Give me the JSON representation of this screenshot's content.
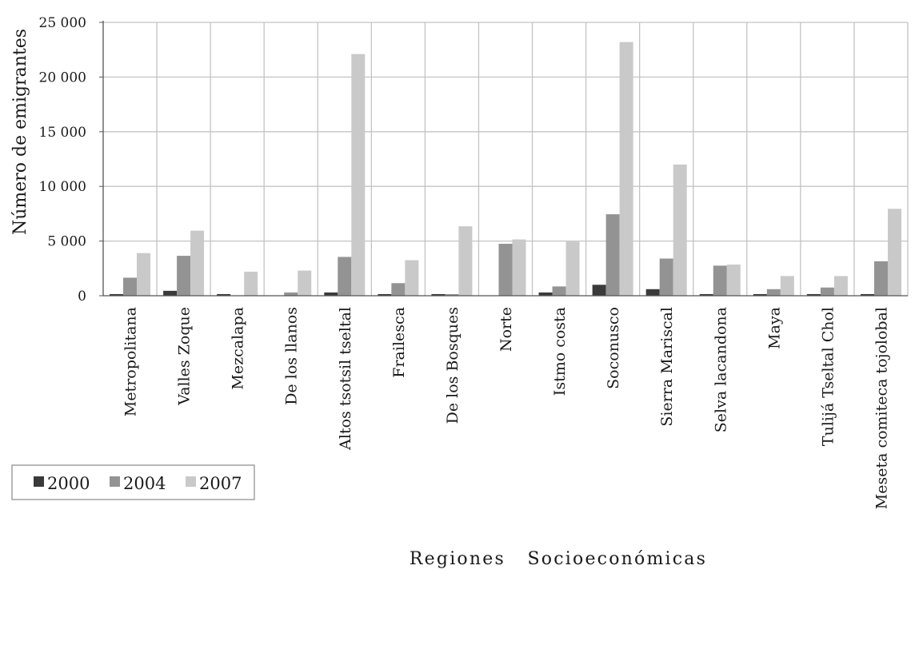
{
  "chart_data": {
    "type": "bar",
    "title": "",
    "xlabel": "Regiones   Socioeconómicas",
    "ylabel": "Número de emigrantes",
    "ylim": [
      0,
      25000
    ],
    "yticks": [
      0,
      5000,
      10000,
      15000,
      20000,
      25000
    ],
    "ytick_labels": [
      "0",
      "5 000",
      "10 000",
      "15 000",
      "20 000",
      "25 000"
    ],
    "grid": true,
    "legend_position": "bottom-left",
    "categories": [
      "Metropolitana",
      "Valles Zoque",
      "Mezcalapa",
      "De los llanos",
      "Altos tsotsil tseltal",
      "Frailesca",
      "De los Bosques",
      "Norte",
      "Istmo costa",
      "Soconusco",
      "Sierra Mariscal",
      "Selva lacandona",
      "Maya",
      "Tulijá Tseltal Chol",
      "Meseta comiteca tojolobal"
    ],
    "series": [
      {
        "name": "2000",
        "color": "#3a3a3a",
        "values": [
          150,
          450,
          150,
          0,
          300,
          150,
          150,
          0,
          300,
          1000,
          600,
          150,
          150,
          150,
          150
        ]
      },
      {
        "name": "2004",
        "color": "#939393",
        "values": [
          1650,
          3650,
          0,
          300,
          3550,
          1150,
          150,
          4750,
          850,
          7450,
          3400,
          2750,
          600,
          750,
          3150
        ]
      },
      {
        "name": "2007",
        "color": "#c9c9c9",
        "values": [
          3900,
          5950,
          2200,
          2300,
          22100,
          3250,
          6350,
          5150,
          4950,
          23200,
          12000,
          2850,
          1800,
          1800,
          7950
        ]
      }
    ]
  }
}
